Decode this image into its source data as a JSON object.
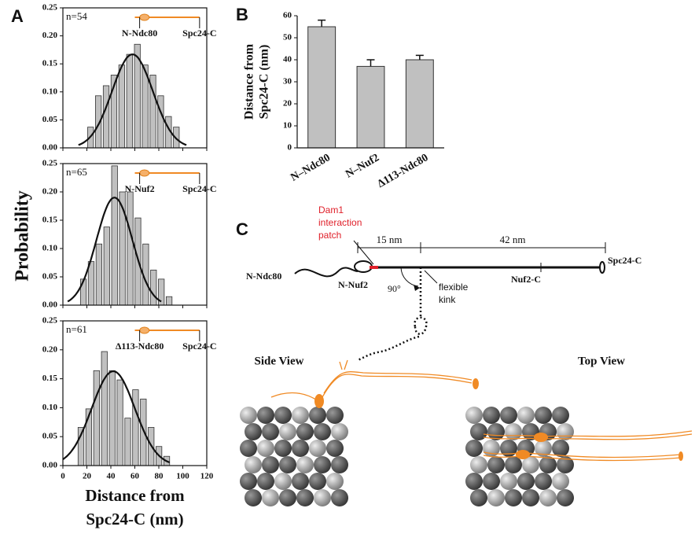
{
  "panel_labels": [
    "A",
    "B",
    "C"
  ],
  "chart_data": [
    {
      "type": "histogram",
      "annotation": "n=54",
      "inset_labels": [
        "N-Ndc80",
        "Spc24-C"
      ],
      "bins": [
        20,
        26.5,
        33,
        39.5,
        46,
        52.5,
        59,
        65.5,
        72,
        78.5,
        85,
        91.5,
        98
      ],
      "values": [
        0.037,
        0.093,
        0.111,
        0.13,
        0.148,
        0.167,
        0.185,
        0.148,
        0.13,
        0.093,
        0.056,
        0.037
      ],
      "fit": {
        "mean": 58,
        "sd": 17,
        "peak": 0.167
      },
      "color": "#c0c0c0",
      "xlim": [
        0,
        120
      ],
      "xticks": [
        0,
        20,
        40,
        60,
        80,
        100,
        120
      ],
      "show_xtick_labels": false,
      "ylim": [
        0,
        0.25
      ],
      "yticks": [
        {
          "value": 0,
          "label": "0.00"
        },
        {
          "value": 0.05,
          "label": "0.05"
        },
        {
          "value": 0.1,
          "label": "0.10"
        },
        {
          "value": 0.15,
          "label": "0.15"
        },
        {
          "value": 0.2,
          "label": "0.20"
        },
        {
          "value": 0.25,
          "label": "0.25"
        }
      ]
    },
    {
      "type": "histogram",
      "annotation": "n=65",
      "inset_labels": [
        "N-Nuf2",
        "Spc24-C"
      ],
      "bins": [
        14,
        20.5,
        27,
        33.5,
        40,
        46.5,
        53,
        59.5,
        66,
        72.5,
        79,
        85.5,
        92
      ],
      "values": [
        0.046,
        0.077,
        0.108,
        0.138,
        0.246,
        0.2,
        0.2,
        0.154,
        0.108,
        0.062,
        0.046,
        0.015
      ],
      "fit": {
        "mean": 43,
        "sd": 15,
        "peak": 0.19
      },
      "color": "#c0c0c0",
      "xlim": [
        0,
        120
      ],
      "xticks": [
        0,
        20,
        40,
        60,
        80,
        100,
        120
      ],
      "show_xtick_labels": false,
      "ylim": [
        0,
        0.25
      ],
      "yticks": [
        {
          "value": 0,
          "label": "0.00"
        },
        {
          "value": 0.05,
          "label": "0.05"
        },
        {
          "value": 0.1,
          "label": "0.10"
        },
        {
          "value": 0.15,
          "label": "0.15"
        },
        {
          "value": 0.2,
          "label": "0.20"
        },
        {
          "value": 0.25,
          "label": "0.25"
        }
      ]
    },
    {
      "type": "histogram",
      "annotation": "n=61",
      "inset_labels": [
        "Δ113-Ndc80",
        "Spc24-C"
      ],
      "ylabel": "Probability",
      "xlabel": [
        "Distance from",
        "Spc24-C (nm)"
      ],
      "bins": [
        12,
        18.5,
        25,
        31.5,
        38,
        44.5,
        51,
        57.5,
        64,
        70.5,
        77,
        83.5,
        90
      ],
      "values": [
        0.066,
        0.098,
        0.164,
        0.197,
        0.164,
        0.148,
        0.082,
        0.131,
        0.115,
        0.066,
        0.033,
        0.016
      ],
      "fit": {
        "mean": 42,
        "sd": 18,
        "peak": 0.163
      },
      "color": "#c0c0c0",
      "xlim": [
        0,
        120
      ],
      "xticks": [
        0,
        20,
        40,
        60,
        80,
        100,
        120
      ],
      "show_xtick_labels": true,
      "ylim": [
        0,
        0.25
      ],
      "yticks": [
        {
          "value": 0,
          "label": "0.00"
        },
        {
          "value": 0.05,
          "label": "0.05"
        },
        {
          "value": 0.1,
          "label": "0.10"
        },
        {
          "value": 0.15,
          "label": "0.15"
        },
        {
          "value": 0.2,
          "label": "0.20"
        },
        {
          "value": 0.25,
          "label": "0.25"
        }
      ]
    },
    {
      "type": "bar",
      "ylabel": [
        "Distance from",
        "Spc24-C (nm)"
      ],
      "categories": [
        "N–Ndc80",
        "N–Nuf2",
        "Δ113-Ndc80"
      ],
      "values": [
        55,
        37,
        40
      ],
      "errors": [
        3,
        3,
        2
      ],
      "color": "#c0c0c0",
      "ylim": [
        0,
        60
      ],
      "yticks": [
        0,
        10,
        20,
        30,
        40,
        50,
        60
      ]
    }
  ],
  "diagram": {
    "dam1_label": [
      "Dam1",
      "interaction",
      "patch"
    ],
    "dim_short": "15 nm",
    "dim_long": "42 nm",
    "n_ndc80": "N-Ndc80",
    "n_nuf2": "N-Nuf2",
    "nuf2_c": "Nuf2-C",
    "spc24_c": "Spc24-C",
    "angle": "90°",
    "kink": [
      "flexible",
      "kink"
    ],
    "side_view": "Side View",
    "top_view": "Top View"
  }
}
